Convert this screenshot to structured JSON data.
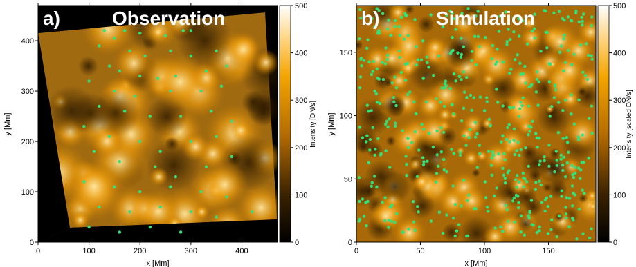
{
  "chart_data": [
    {
      "type": "heatmap",
      "panel_letter": "a)",
      "title": "Observation",
      "xlabel": "x [Mm]",
      "ylabel": "y [Mm]",
      "xlim": [
        0,
        470
      ],
      "ylim": [
        0,
        470
      ],
      "xticks": [
        "0",
        "100",
        "200",
        "300",
        "400"
      ],
      "yticks": [
        "0",
        "100",
        "200",
        "300",
        "400"
      ],
      "colorbar": {
        "label": "Intensity [DN/s]",
        "range": [
          0,
          500
        ],
        "ticks": [
          "0",
          "100",
          "200",
          "300",
          "400",
          "500"
        ]
      },
      "marker_color": "#33e07a",
      "markers": [
        [
          130,
          420
        ],
        [
          150,
          405
        ],
        [
          170,
          420
        ],
        [
          200,
          415
        ],
        [
          250,
          410
        ],
        [
          285,
          420
        ],
        [
          300,
          420
        ],
        [
          120,
          390
        ],
        [
          180,
          380
        ],
        [
          210,
          370
        ],
        [
          260,
          380
        ],
        [
          300,
          370
        ],
        [
          350,
          380
        ],
        [
          140,
          350
        ],
        [
          160,
          340
        ],
        [
          200,
          330
        ],
        [
          235,
          325
        ],
        [
          270,
          330
        ],
        [
          330,
          340
        ],
        [
          370,
          350
        ],
        [
          100,
          320
        ],
        [
          150,
          300
        ],
        [
          190,
          290
        ],
        [
          260,
          300
        ],
        [
          320,
          300
        ],
        [
          360,
          310
        ],
        [
          120,
          270
        ],
        [
          170,
          260
        ],
        [
          220,
          250
        ],
        [
          280,
          250
        ],
        [
          340,
          260
        ],
        [
          380,
          240
        ],
        [
          90,
          230
        ],
        [
          140,
          210
        ],
        [
          200,
          200
        ],
        [
          240,
          180
        ],
        [
          300,
          200
        ],
        [
          350,
          210
        ],
        [
          110,
          180
        ],
        [
          160,
          160
        ],
        [
          230,
          150
        ],
        [
          270,
          130
        ],
        [
          330,
          150
        ],
        [
          380,
          170
        ],
        [
          90,
          120
        ],
        [
          150,
          110
        ],
        [
          200,
          100
        ],
        [
          260,
          110
        ],
        [
          320,
          100
        ],
        [
          370,
          90
        ],
        [
          120,
          70
        ],
        [
          180,
          60
        ],
        [
          240,
          70
        ],
        [
          300,
          60
        ],
        [
          350,
          50
        ],
        [
          420,
          60
        ],
        [
          100,
          30
        ],
        [
          160,
          20
        ],
        [
          220,
          30
        ],
        [
          280,
          20
        ]
      ],
      "grid": false
    },
    {
      "type": "heatmap",
      "panel_letter": "b)",
      "title": "Simulation",
      "xlabel": "x [Mm]",
      "ylabel": "y [Mm]",
      "xlim": [
        0,
        187
      ],
      "ylim": [
        0,
        187
      ],
      "xticks": [
        "0",
        "50",
        "100",
        "150"
      ],
      "yticks": [
        "0",
        "50",
        "100",
        "150"
      ],
      "colorbar": {
        "label": "Intensity [scaled DN/s]",
        "range": [
          0,
          500
        ],
        "ticks": [
          "0",
          "100",
          "200",
          "300",
          "400",
          "500"
        ]
      },
      "marker_color": "#33e07a",
      "grid": false
    }
  ]
}
